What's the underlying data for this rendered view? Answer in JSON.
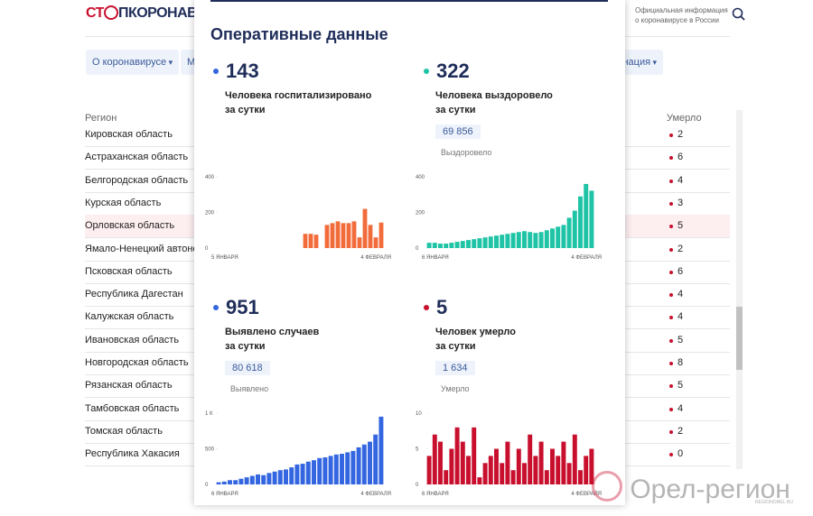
{
  "header": {
    "logo_left": "СТ",
    "logo_right": "ПКОРОНАВИ",
    "info": [
      "Официальная информация",
      "о коронавирусе в России"
    ]
  },
  "nav": [
    "О коронавирусе",
    "М",
    "цинация"
  ],
  "table": {
    "columns": [
      "Регион",
      "Умерло"
    ],
    "rows": [
      [
        "Кировская область",
        2
      ],
      [
        "Астраханская область",
        6
      ],
      [
        "Белгородская область",
        4
      ],
      [
        "Курская область",
        3
      ],
      [
        "Орловская область",
        5
      ],
      [
        "Ямало-Ненецкий автоном",
        2
      ],
      [
        "Псковская область",
        6
      ],
      [
        "Республика Дагестан",
        4
      ],
      [
        "Калужская область",
        4
      ],
      [
        "Ивановская область",
        5
      ],
      [
        "Новгородская область",
        8
      ],
      [
        "Рязанская область",
        5
      ],
      [
        "Тамбовская область",
        4
      ],
      [
        "Томская область",
        2
      ],
      [
        "Республика Хакасия",
        0
      ]
    ]
  },
  "panel": {
    "title": "Оперативные данные",
    "cards": [
      {
        "value": 143,
        "label": [
          "Человека госпитализировано",
          "за сутки"
        ],
        "chart": {
          "color": "#f26b3a",
          "ylim": [
            0,
            400
          ],
          "yticks": [
            0,
            200,
            400
          ],
          "x_labels": [
            "5 ЯНВАРЯ",
            "4 ФЕВРАЛЯ"
          ],
          "values": [
            null,
            null,
            null,
            null,
            null,
            null,
            null,
            null,
            null,
            null,
            null,
            null,
            null,
            null,
            null,
            null,
            80,
            80,
            75,
            null,
            130,
            140,
            150,
            140,
            140,
            150,
            60,
            220,
            130,
            60,
            143
          ]
        }
      },
      {
        "value": 322,
        "label": [
          "Человека выздоровело",
          "за сутки"
        ],
        "total": "69 856",
        "total_label": "Выздоровело",
        "chart": {
          "color": "#1fc4a6",
          "ylim": [
            0,
            400
          ],
          "yticks": [
            0,
            200,
            400
          ],
          "x_labels": [
            "6 ЯНВАРЯ",
            "4 ФЕВРАЛЯ"
          ],
          "values": [
            30,
            30,
            25,
            25,
            30,
            35,
            40,
            45,
            50,
            55,
            60,
            65,
            70,
            75,
            80,
            85,
            90,
            95,
            90,
            85,
            90,
            100,
            110,
            120,
            130,
            170,
            210,
            290,
            360,
            322
          ]
        }
      },
      {
        "value": 951,
        "label": [
          "Выявлено случаев",
          "за сутки"
        ],
        "total": "80 618",
        "total_label": "Выявлено",
        "chart": {
          "color": "#3366e0",
          "ylim": [
            0,
            1000
          ],
          "yticks": [
            0,
            500,
            {
              "value": 1000,
              "label": "1 К"
            }
          ],
          "x_labels": [
            "6 ЯНВАРЯ",
            "4 ФЕВРАЛЯ"
          ],
          "values": [
            30,
            40,
            60,
            60,
            80,
            100,
            120,
            140,
            130,
            160,
            180,
            200,
            210,
            240,
            280,
            290,
            320,
            340,
            370,
            380,
            400,
            420,
            430,
            450,
            470,
            520,
            560,
            600,
            700,
            951
          ]
        }
      },
      {
        "value": 5,
        "label": [
          "Человек умерло",
          "за сутки"
        ],
        "total": "1 634",
        "total_label": "Умерло",
        "chart": {
          "color": "#c8102e",
          "ylim": [
            0,
            10
          ],
          "yticks": [
            0,
            5,
            10
          ],
          "x_labels": [
            "6 ЯНВАРЯ",
            "4 ФЕВРАЛЯ"
          ],
          "values": [
            4,
            7,
            6,
            2,
            5,
            8,
            6,
            4,
            8,
            1,
            3,
            4,
            5,
            3,
            6,
            2,
            5,
            3,
            7,
            4,
            6,
            2,
            5,
            4,
            6,
            3,
            7,
            2,
            4,
            5
          ]
        }
      }
    ]
  },
  "watermark": {
    "title": "Орел-регион",
    "url": "REGIONOREL.RU"
  }
}
